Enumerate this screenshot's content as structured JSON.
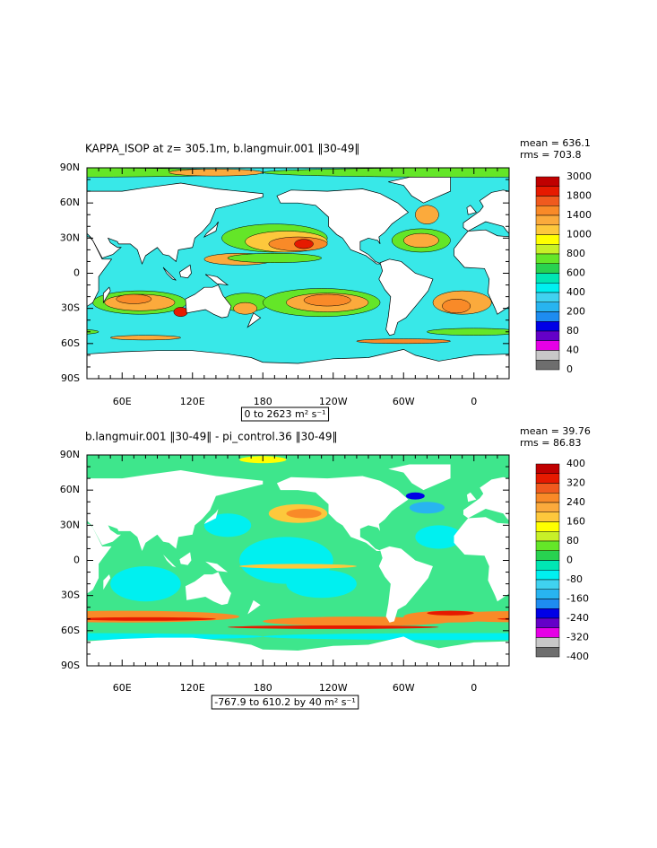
{
  "panels": [
    {
      "title": "KAPPA_ISOP at z= 305.1m, b.langmuir.001 ‖30-49‖",
      "stats": [
        "mean = 636.1",
        "rms = 703.8"
      ],
      "range_label": "0 to 2623 m² s⁻¹",
      "colorbar_labels": [
        3000,
        1800,
        1400,
        1000,
        800,
        600,
        400,
        200,
        80,
        40,
        0
      ]
    },
    {
      "title": "b.langmuir.001 ‖30-49‖ - pi_control.36 ‖30-49‖",
      "stats": [
        "mean = 39.76",
        "rms = 86.83"
      ],
      "range_label": "-767.9 to 610.2 by 40 m² s⁻¹",
      "colorbar_labels": [
        400,
        320,
        240,
        160,
        80,
        0,
        -80,
        -160,
        -240,
        -320,
        -400
      ]
    }
  ],
  "lat_labels": [
    "90N",
    "60N",
    "30N",
    "0",
    "30S",
    "60S",
    "90S"
  ],
  "lon_labels": [
    "60E",
    "120E",
    "180",
    "120W",
    "60W",
    "0"
  ],
  "palette": [
    "#c00000",
    "#e61a00",
    "#f05a1e",
    "#f98a28",
    "#fbaa3c",
    "#fdc83c",
    "#ffff00",
    "#c8f028",
    "#64e628",
    "#28d250",
    "#00e6b4",
    "#00f0f0",
    "#40d2f0",
    "#28b4f0",
    "#1e8cf0",
    "#0000e6",
    "#6400c8",
    "#e600e6",
    "#c8c8c8",
    "#6e6e6e"
  ]
}
